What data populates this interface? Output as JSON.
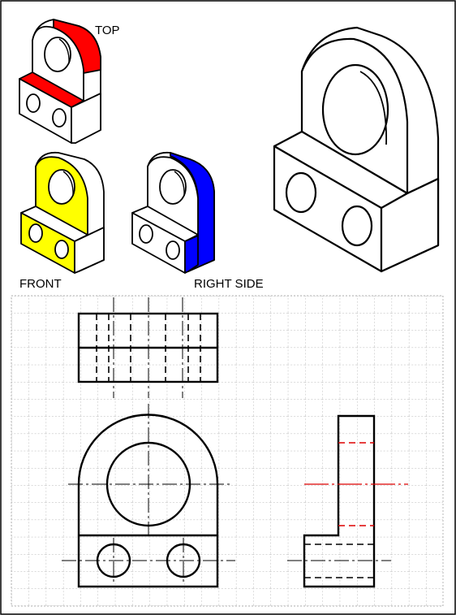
{
  "labels": {
    "top": "TOP",
    "front": "FRONT",
    "right_side": "RIGHT SIDE"
  },
  "colors": {
    "top_face": "#ff0000",
    "front_face": "#ffff00",
    "right_face": "#0000ff",
    "grid_line": "#9a9a9a",
    "centerline_highlight": "#dd0000",
    "outline": "#000000",
    "border": "#000000"
  },
  "views": [
    "top-view",
    "front-view",
    "right-side-view"
  ]
}
